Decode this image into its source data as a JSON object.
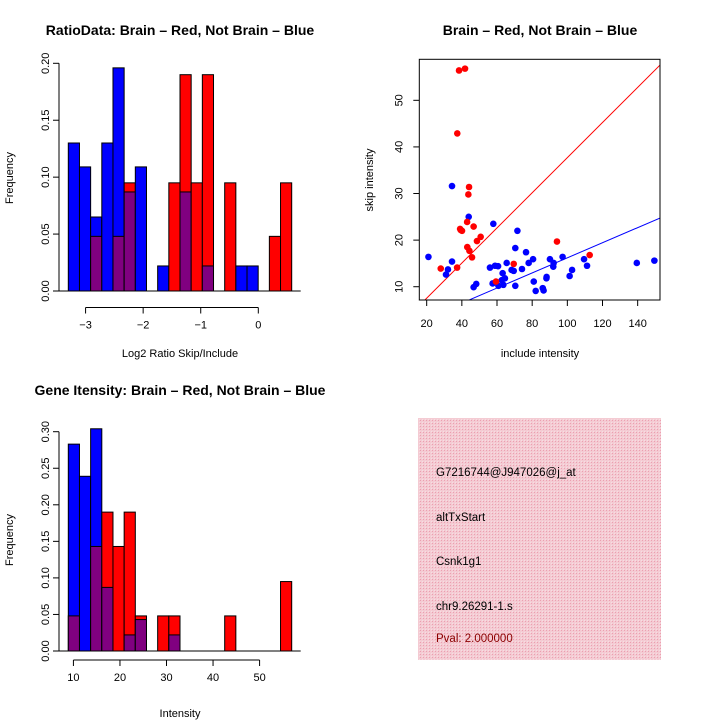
{
  "colors": {
    "brain": "#ff0000",
    "not_brain": "#0000ff",
    "overlap": "#800080",
    "panel": "#f2c2cc",
    "pval": "#8b0000"
  },
  "chart_data": [
    {
      "type": "bar",
      "title": "RatioData: Brain – Red, Not Brain – Blue",
      "xlabel": "Log2 Ratio Skip/Include",
      "ylabel": "Frequency",
      "bin_start": -3.3,
      "bin_width": 0.194,
      "xlim": [
        -3.3,
        0.58
      ],
      "ylim": [
        0,
        0.2
      ],
      "xticks": [
        -3,
        -2,
        -1,
        0
      ],
      "xtick_labels": [
        "−3",
        "−2",
        "−1",
        "0"
      ],
      "yticks": [
        0,
        0.05,
        0.1,
        0.15,
        0.2
      ],
      "ytick_labels": [
        "0.00",
        "0.05",
        "0.10",
        "0.15",
        "0.20"
      ],
      "series": [
        {
          "name": "Not Brain",
          "color": "#0000ff",
          "values": [
            0.13,
            0.109,
            0.065,
            0.13,
            0.196,
            0.087,
            0.109,
            0,
            0.022,
            0,
            0.087,
            0,
            0.022,
            0,
            0,
            0.022,
            0.022,
            0,
            0,
            0
          ]
        },
        {
          "name": "Brain",
          "color": "#ff0000",
          "values": [
            0,
            0,
            0.048,
            0,
            0.048,
            0.095,
            0,
            0,
            0,
            0.095,
            0.19,
            0.095,
            0.19,
            0,
            0.095,
            0,
            0,
            0,
            0.048,
            0.095
          ]
        }
      ]
    },
    {
      "type": "scatter",
      "title": "Brain – Red, Not Brain – Blue",
      "xlabel": "include intensity",
      "ylabel": "skip intensity",
      "xlim": [
        15.8,
        152.7
      ],
      "ylim": [
        7.15,
        58.8
      ],
      "xticks": [
        20,
        40,
        60,
        80,
        100,
        120,
        140
      ],
      "yticks": [
        10,
        20,
        30,
        40,
        50
      ],
      "lines": [
        {
          "name": "Brain fit",
          "color": "#ff0000",
          "slope": 0.377,
          "intercept": 0
        },
        {
          "name": "Not Brain fit",
          "color": "#0000ff",
          "slope": 0.162,
          "intercept": 0
        }
      ],
      "series": [
        {
          "name": "Brain",
          "color": "#ff0000",
          "points": [
            [
              38.4,
              56.4
            ],
            [
              41.8,
              56.8
            ],
            [
              37.4,
              42.9
            ],
            [
              44.1,
              31.4
            ],
            [
              43.7,
              29.8
            ],
            [
              39,
              22.4
            ],
            [
              39.3,
              22.2
            ],
            [
              40.1,
              22
            ],
            [
              46.7,
              22.9
            ],
            [
              43,
              23.9
            ],
            [
              43.1,
              18.5
            ],
            [
              44.3,
              17.7
            ],
            [
              45.8,
              16.3
            ],
            [
              48.6,
              19.8
            ],
            [
              50.7,
              20.7
            ],
            [
              28,
              13.9
            ],
            [
              37.3,
              14.1
            ],
            [
              59.4,
              11.1
            ],
            [
              69.5,
              14.9
            ],
            [
              94.1,
              19.7
            ],
            [
              112.7,
              16.8
            ]
          ]
        },
        {
          "name": "Not Brain",
          "color": "#0000ff",
          "points": [
            [
              21,
              16.4
            ],
            [
              34.4,
              31.6
            ],
            [
              43.9,
              25
            ],
            [
              57.9,
              23.5
            ],
            [
              34.4,
              15.4
            ],
            [
              32.1,
              13.7
            ],
            [
              31,
              12.6
            ],
            [
              46.7,
              9.9
            ],
            [
              48.2,
              10.6
            ],
            [
              56,
              14.1
            ],
            [
              58.9,
              14.5
            ],
            [
              60.6,
              14.4
            ],
            [
              57.5,
              10.7
            ],
            [
              60.8,
              10.2
            ],
            [
              63.2,
              12.9
            ],
            [
              63.6,
              10.4
            ],
            [
              65.5,
              15.1
            ],
            [
              68.3,
              13.6
            ],
            [
              69.5,
              13.4
            ],
            [
              70.4,
              10.2
            ],
            [
              70.4,
              18.3
            ],
            [
              71.6,
              22
            ],
            [
              76.5,
              17.4
            ],
            [
              74.2,
              13.8
            ],
            [
              78,
              15.1
            ],
            [
              80.5,
              15.9
            ],
            [
              80.9,
              11.1
            ],
            [
              82,
              9.1
            ],
            [
              86,
              9.7
            ],
            [
              86.5,
              9.2
            ],
            [
              88.1,
              11.8
            ],
            [
              88.2,
              12.1
            ],
            [
              90.1,
              15.9
            ],
            [
              92,
              14.3
            ],
            [
              92.2,
              15.1
            ],
            [
              97.3,
              16.4
            ],
            [
              101.3,
              12.3
            ],
            [
              102.7,
              13.6
            ],
            [
              109.5,
              15.9
            ],
            [
              111.2,
              14.5
            ],
            [
              139.5,
              15.1
            ],
            [
              149.5,
              15.6
            ],
            [
              62.7,
              11.4
            ],
            [
              64.5,
              11.8
            ]
          ]
        }
      ]
    },
    {
      "type": "bar",
      "title": "Gene Itensity: Brain – Red, Not Brain – Blue",
      "xlabel": "Intensity",
      "ylabel": "Frequency",
      "bin_start": 8.9,
      "bin_width": 2.4,
      "xlim": [
        8.9,
        56.9
      ],
      "ylim": [
        0,
        0.3
      ],
      "xticks": [
        10,
        20,
        30,
        40,
        50
      ],
      "xtick_labels": [
        "10",
        "20",
        "30",
        "40",
        "50"
      ],
      "yticks": [
        0,
        0.05,
        0.1,
        0.15,
        0.2,
        0.25,
        0.3
      ],
      "ytick_labels": [
        "0.00",
        "0.05",
        "0.10",
        "0.15",
        "0.20",
        "0.25",
        "0.30"
      ],
      "series": [
        {
          "name": "Not Brain",
          "color": "#0000ff",
          "values": [
            0.283,
            0.239,
            0.304,
            0.087,
            0,
            0.022,
            0.043,
            0,
            0,
            0.022,
            0,
            0,
            0,
            0,
            0,
            0,
            0,
            0,
            0,
            0
          ]
        },
        {
          "name": "Brain",
          "color": "#ff0000",
          "values": [
            0.048,
            0,
            0.143,
            0.19,
            0.143,
            0.19,
            0.048,
            0,
            0.048,
            0.048,
            0,
            0,
            0,
            0,
            0.048,
            0,
            0,
            0,
            0,
            0.095
          ]
        }
      ]
    }
  ],
  "info_panel": {
    "probe_id": "G7216744@J947026@j_at",
    "event_type": "altTxStart",
    "gene": "Csnk1g1",
    "location": "chr9.26291-1.s",
    "pval": "Pval: 2.000000"
  }
}
